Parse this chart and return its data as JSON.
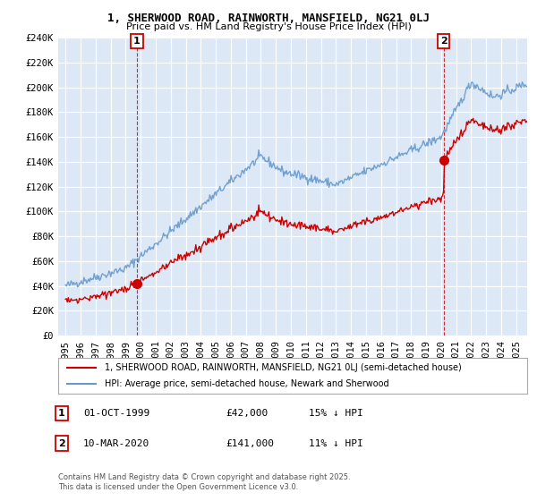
{
  "title": "1, SHERWOOD ROAD, RAINWORTH, MANSFIELD, NG21 0LJ",
  "subtitle": "Price paid vs. HM Land Registry's House Price Index (HPI)",
  "legend_label_red": "1, SHERWOOD ROAD, RAINWORTH, MANSFIELD, NG21 0LJ (semi-detached house)",
  "legend_label_blue": "HPI: Average price, semi-detached house, Newark and Sherwood",
  "footer": "Contains HM Land Registry data © Crown copyright and database right 2025.\nThis data is licensed under the Open Government Licence v3.0.",
  "annotation1_label": "1",
  "annotation1_date": "01-OCT-1999",
  "annotation1_price": "£42,000",
  "annotation1_hpi": "15% ↓ HPI",
  "annotation2_label": "2",
  "annotation2_date": "10-MAR-2020",
  "annotation2_price": "£141,000",
  "annotation2_hpi": "11% ↓ HPI",
  "sale1_x": 1999.75,
  "sale1_y": 42000,
  "sale2_x": 2020.17,
  "sale2_y": 141000,
  "ylim": [
    0,
    240000
  ],
  "yticks": [
    0,
    20000,
    40000,
    60000,
    80000,
    100000,
    120000,
    140000,
    160000,
    180000,
    200000,
    220000,
    240000
  ],
  "ytick_labels": [
    "£0",
    "£20K",
    "£40K",
    "£60K",
    "£80K",
    "£100K",
    "£120K",
    "£140K",
    "£160K",
    "£180K",
    "£200K",
    "£220K",
    "£240K"
  ],
  "xlim": [
    1994.5,
    2025.7
  ],
  "xticks": [
    1995,
    1996,
    1997,
    1998,
    1999,
    2000,
    2001,
    2002,
    2003,
    2004,
    2005,
    2006,
    2007,
    2008,
    2009,
    2010,
    2011,
    2012,
    2013,
    2014,
    2015,
    2016,
    2017,
    2018,
    2019,
    2020,
    2021,
    2022,
    2023,
    2024,
    2025
  ],
  "color_red": "#cc0000",
  "color_blue": "#6699cc",
  "color_vline": "#cc0000",
  "bg_color": "#dce8f5",
  "grid_color": "#ffffff",
  "outer_bg": "#f0f0f0"
}
